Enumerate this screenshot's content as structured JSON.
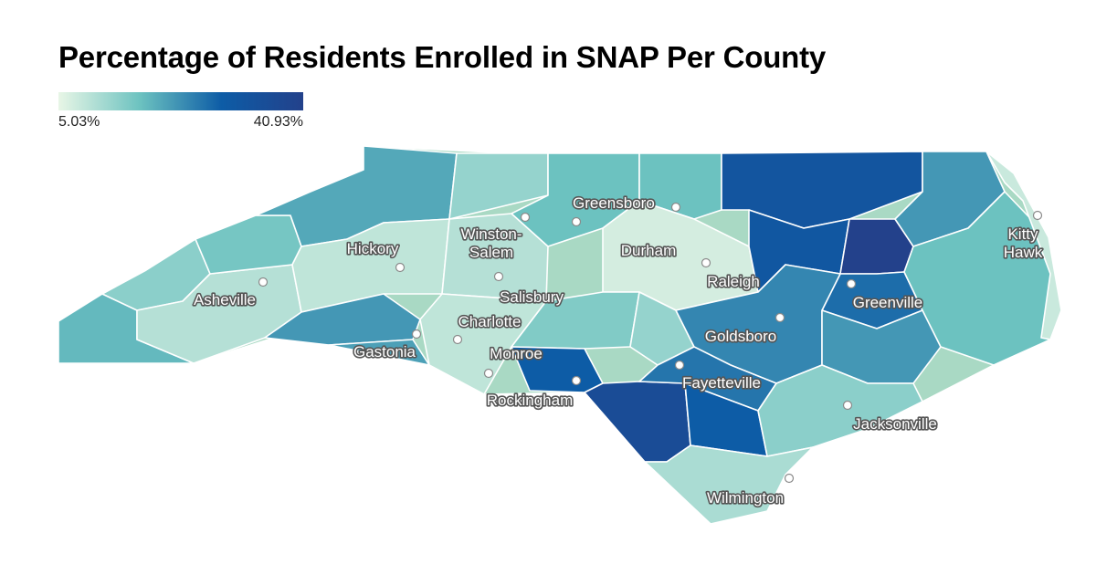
{
  "title": "Percentage of Residents Enrolled in SNAP Per County",
  "legend": {
    "min_label": "5.03%",
    "max_label": "40.93%",
    "min_value": 5.03,
    "max_value": 40.93,
    "color_low": "#e8f6e6",
    "color_mid": "#6cc2c0",
    "color_high": "#0d5ca6",
    "color_max": "#23418b"
  },
  "cities": [
    {
      "name": "Greensboro",
      "lines": [
        "Greensboro"
      ]
    },
    {
      "name": "Winston-Salem",
      "lines": [
        "Winston-",
        "Salem"
      ]
    },
    {
      "name": "Durham",
      "lines": [
        "Durham"
      ]
    },
    {
      "name": "Kitty Hawk",
      "lines": [
        "Kitty",
        "Hawk"
      ]
    },
    {
      "name": "Hickory",
      "lines": [
        "Hickory"
      ]
    },
    {
      "name": "Raleigh",
      "lines": [
        "Raleigh"
      ]
    },
    {
      "name": "Asheville",
      "lines": [
        "Asheville"
      ]
    },
    {
      "name": "Salisbury",
      "lines": [
        "Salisbury"
      ]
    },
    {
      "name": "Greenville",
      "lines": [
        "Greenville"
      ]
    },
    {
      "name": "Charlotte",
      "lines": [
        "Charlotte"
      ]
    },
    {
      "name": "Goldsboro",
      "lines": [
        "Goldsboro"
      ]
    },
    {
      "name": "Gastonia",
      "lines": [
        "Gastonia"
      ]
    },
    {
      "name": "Monroe",
      "lines": [
        "Monroe"
      ]
    },
    {
      "name": "Fayetteville",
      "lines": [
        "Fayetteville"
      ]
    },
    {
      "name": "Rockingham",
      "lines": [
        "Rockingham"
      ]
    },
    {
      "name": "Jacksonville",
      "lines": [
        "Jacksonville"
      ]
    },
    {
      "name": "Wilmington",
      "lines": [
        "Wilmington"
      ]
    }
  ],
  "region_values": [
    {
      "region": "west-tip",
      "value": 18
    },
    {
      "region": "far-west",
      "value": 14
    },
    {
      "region": "asheville-area",
      "value": 10
    },
    {
      "region": "blue-ridge",
      "value": 16
    },
    {
      "region": "northwest-mountains",
      "value": 20
    },
    {
      "region": "ne-mountains",
      "value": 13
    },
    {
      "region": "hickory-area",
      "value": 9
    },
    {
      "region": "foothills-south",
      "value": 22
    },
    {
      "region": "gaston-area",
      "value": 21
    },
    {
      "region": "winston-area",
      "value": 10
    },
    {
      "region": "greensboro-area",
      "value": 17
    },
    {
      "region": "piedmont-north",
      "value": 17
    },
    {
      "region": "triangle",
      "value": 7
    },
    {
      "region": "charlotte-area",
      "value": 9
    },
    {
      "region": "stanly-area",
      "value": 15
    },
    {
      "region": "sandhills",
      "value": 13
    },
    {
      "region": "rockingham-west",
      "value": 29
    },
    {
      "region": "robeson",
      "value": 36
    },
    {
      "region": "northeast-interior",
      "value": 32
    },
    {
      "region": "halifax-bertie",
      "value": 31
    },
    {
      "region": "edgecombe-area",
      "value": 41
    },
    {
      "region": "pitt-area",
      "value": 27
    },
    {
      "region": "wayne-area",
      "value": 24
    },
    {
      "region": "coastal-plain",
      "value": 22
    },
    {
      "region": "cumberland",
      "value": 26
    },
    {
      "region": "columbus",
      "value": 29
    },
    {
      "region": "onslow-pender",
      "value": 14
    },
    {
      "region": "wilmington-coast",
      "value": 11
    },
    {
      "region": "northeast-coast",
      "value": 22
    },
    {
      "region": "pamlico-coast",
      "value": 17
    },
    {
      "region": "outer-banks",
      "value": 8
    }
  ]
}
